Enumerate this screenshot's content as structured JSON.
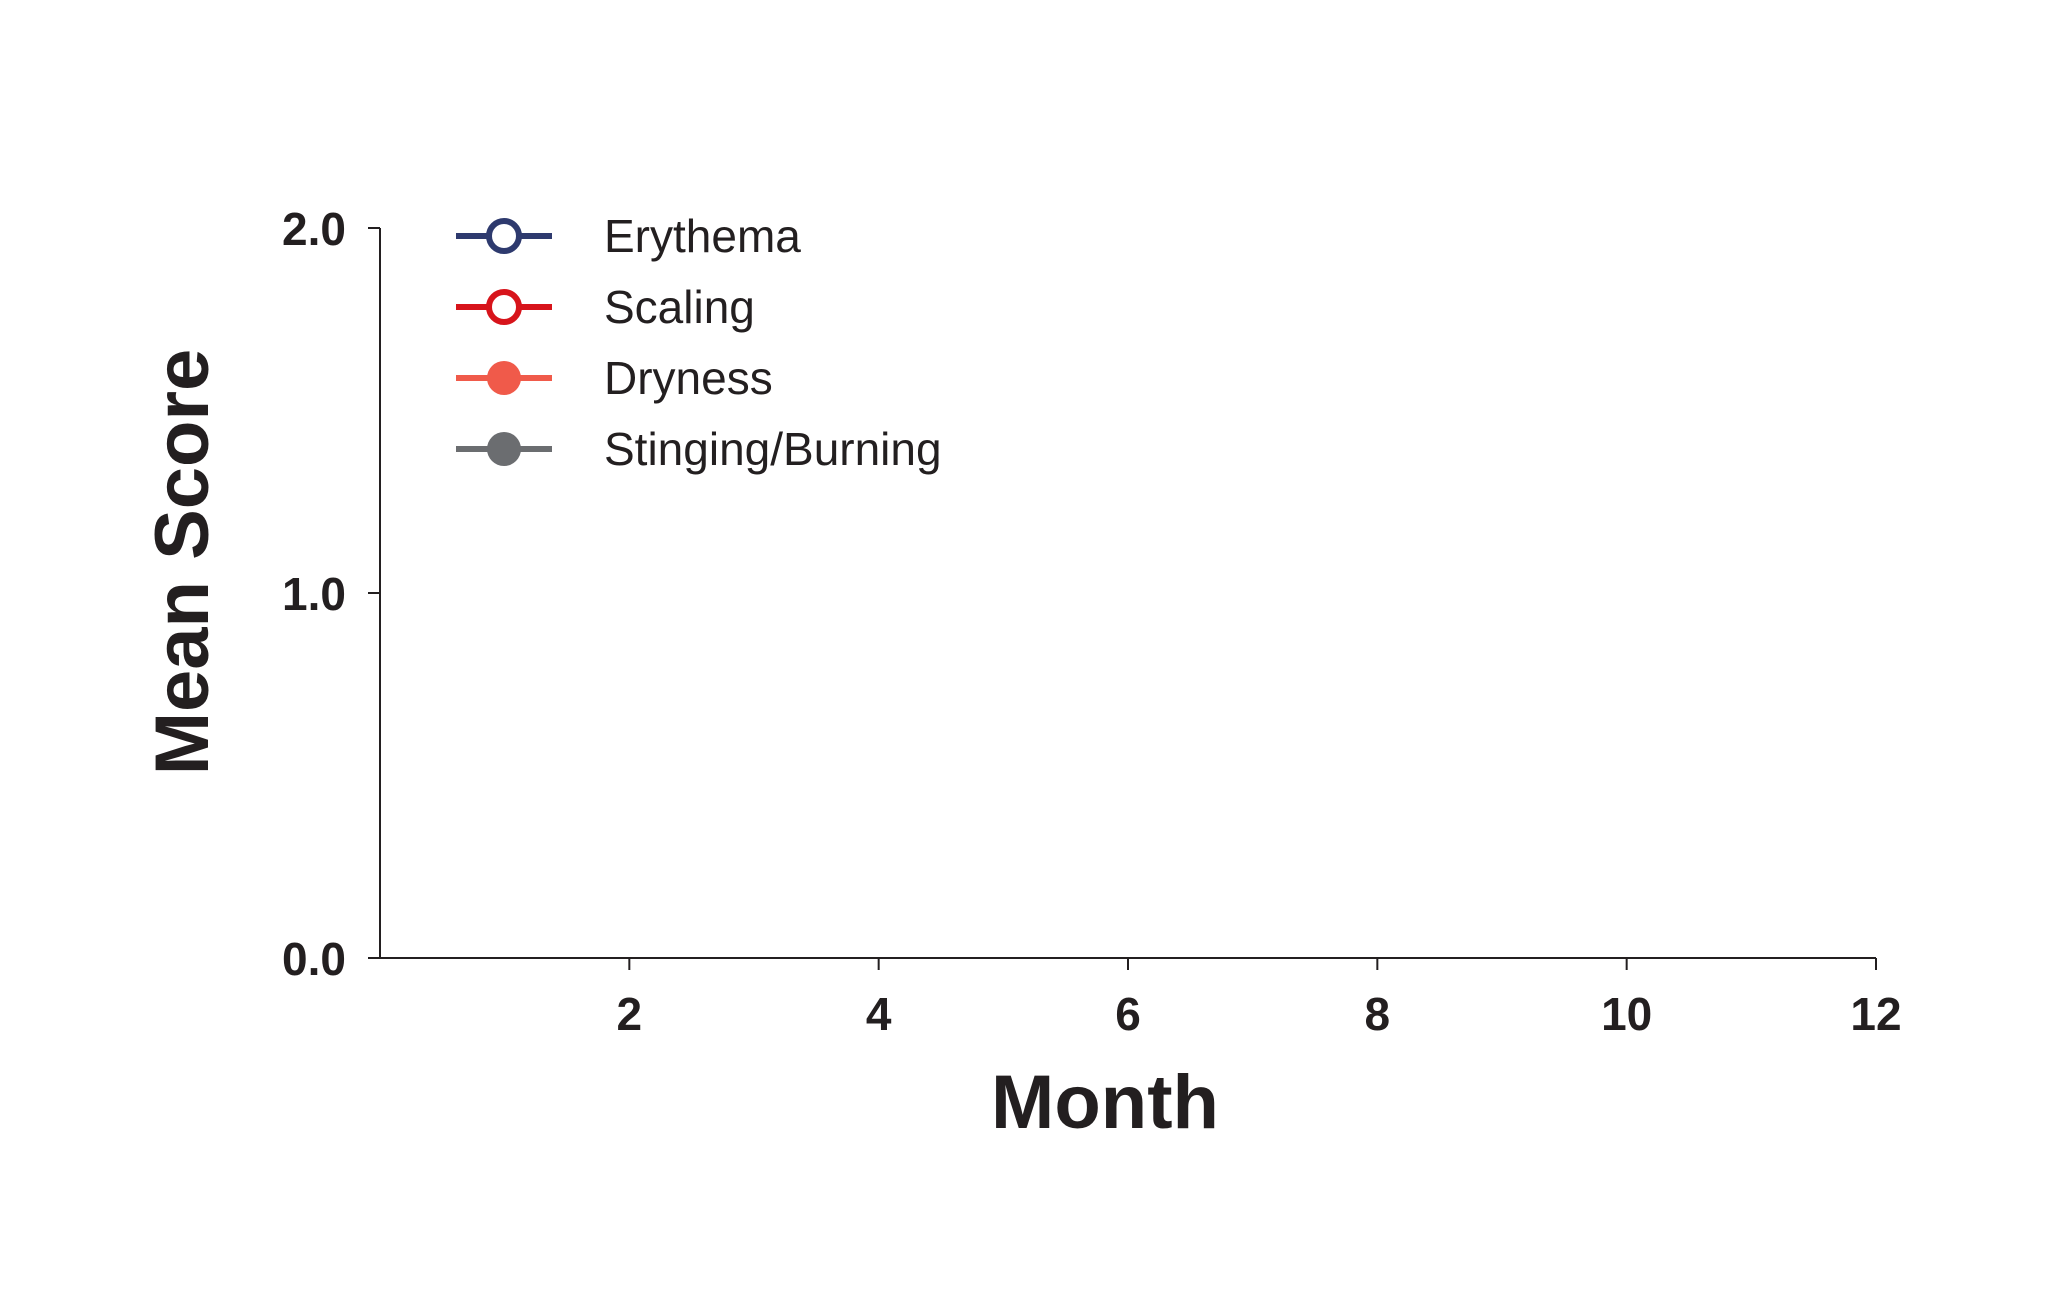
{
  "chart_data": {
    "type": "line",
    "title": "",
    "xlabel": "Month",
    "ylabel": "Mean Score",
    "xlim": [
      0,
      12
    ],
    "ylim": [
      0,
      2
    ],
    "x_ticks": [
      2,
      4,
      6,
      8,
      10,
      12
    ],
    "x_tick_labels": [
      "2",
      "4",
      "6",
      "8",
      "10",
      "12"
    ],
    "y_ticks": [
      0,
      1,
      2
    ],
    "y_tick_labels": [
      "0.0",
      "1.0",
      "2.0"
    ],
    "grid": false,
    "legend_position": "top-left",
    "series": [
      {
        "name": "Erythema",
        "color": "#2e3a6e",
        "marker": "open-circle",
        "x": [],
        "y": []
      },
      {
        "name": "Scaling",
        "color": "#d7141b",
        "marker": "open-circle",
        "x": [],
        "y": []
      },
      {
        "name": "Dryness",
        "color": "#f05a4a",
        "marker": "filled-circle",
        "x": [],
        "y": []
      },
      {
        "name": "Stinging/Burning",
        "color": "#6b6d70",
        "marker": "filled-circle",
        "x": [],
        "y": []
      }
    ]
  }
}
